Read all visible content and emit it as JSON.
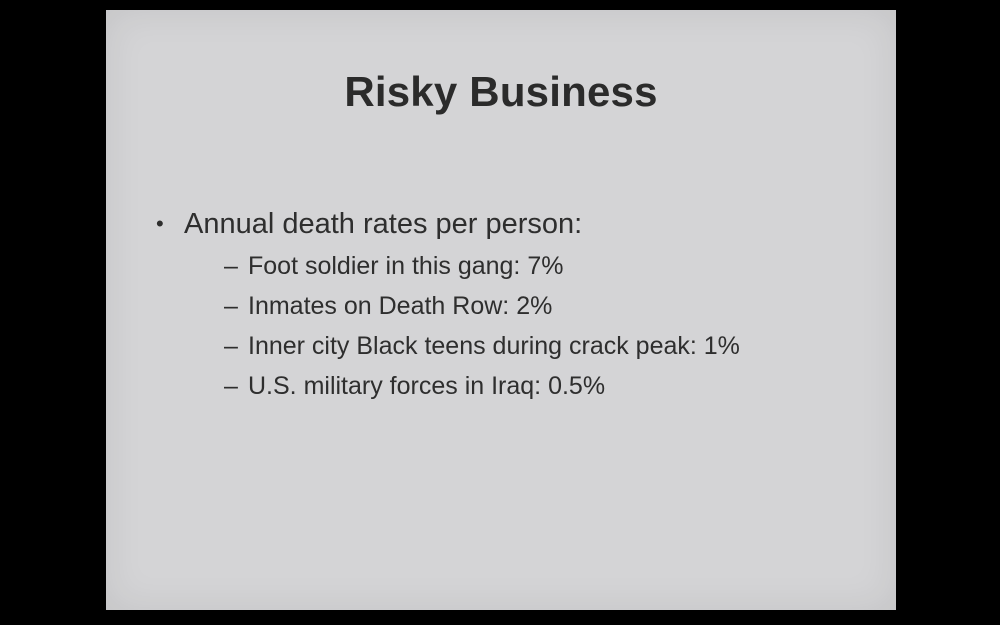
{
  "slide": {
    "title": "Risky Business",
    "bullet": {
      "text": "Annual death rates per person:",
      "marker": "•",
      "subitems": [
        {
          "marker": "–",
          "text": "Foot soldier in this gang: 7%"
        },
        {
          "marker": "–",
          "text": "Inmates on Death Row: 2%"
        },
        {
          "marker": "–",
          "text": "Inner city Black teens during crack peak: 1%"
        },
        {
          "marker": "–",
          "text": "U.S. military forces in Iraq: 0.5%"
        }
      ]
    }
  }
}
